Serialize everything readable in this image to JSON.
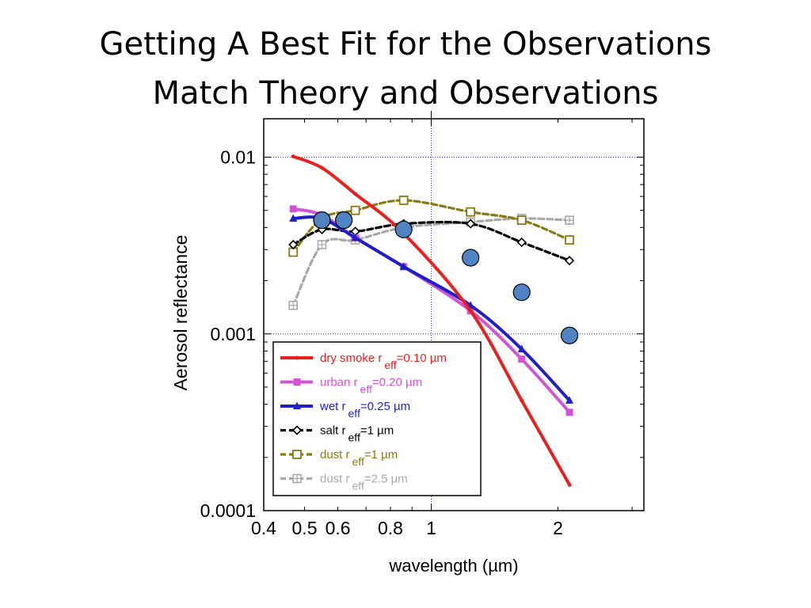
{
  "slide": {
    "title_line1": "Getting A Best Fit for the Observations",
    "title_line2": "Match Theory and Observations"
  },
  "chart_data": {
    "type": "line",
    "xlabel": "wavelength (µm)",
    "ylabel": "Aerosol reflectance",
    "x_scale": "log",
    "y_scale": "log",
    "xlim": [
      0.4,
      3.2
    ],
    "ylim": [
      0.0001,
      0.0165
    ],
    "x_ticks": [
      {
        "v": 0.4,
        "label": "0.4"
      },
      {
        "v": 0.5,
        "label": "0.5"
      },
      {
        "v": 0.6,
        "label": "0.6"
      },
      {
        "v": 0.8,
        "label": "0.8"
      },
      {
        "v": 1,
        "label": "1"
      },
      {
        "v": 2,
        "label": "2"
      }
    ],
    "y_ticks": [
      {
        "v": 0.01,
        "label": "0.01"
      },
      {
        "v": 0.001,
        "label": "0.001"
      },
      {
        "v": 0.0001,
        "label": "0.0001"
      }
    ],
    "reference_lines": {
      "x": [
        1.0
      ],
      "y": [
        0.01,
        0.001
      ]
    },
    "legend_position": "bottom-left",
    "series": [
      {
        "name_text": "dry smoke r",
        "name_sub": "eff",
        "name_tail": "=0.10 µm",
        "color": "#e8211f",
        "marker": "dot",
        "dash": "solid",
        "x": [
          0.47,
          0.55,
          0.66,
          0.86,
          1.24,
          1.64,
          2.13
        ],
        "y": [
          0.0101,
          0.0087,
          0.0062,
          0.0037,
          0.00135,
          0.00042,
          0.00014
        ]
      },
      {
        "name_text": "urban r",
        "name_sub": "eff",
        "name_tail": "=0.20 µm",
        "color": "#d453d4",
        "marker": "square",
        "dash": "solid",
        "x": [
          0.47,
          0.55,
          0.66,
          0.86,
          1.24,
          1.64,
          2.13
        ],
        "y": [
          0.0051,
          0.0047,
          0.0035,
          0.0024,
          0.00135,
          0.00072,
          0.00036
        ]
      },
      {
        "name_text": "wet  r",
        "name_sub": "eff",
        "name_tail": "=0.25 µm",
        "color": "#1f1fc8",
        "marker": "triangle",
        "dash": "solid",
        "x": [
          0.47,
          0.55,
          0.66,
          0.86,
          1.24,
          1.64,
          2.13
        ],
        "y": [
          0.0045,
          0.0045,
          0.0035,
          0.0024,
          0.00145,
          0.00082,
          0.00042
        ]
      },
      {
        "name_text": "salt r",
        "name_sub": "eff",
        "name_tail": "=1 µm",
        "color": "#000000",
        "marker": "diamond",
        "dash": "dashed",
        "x": [
          0.47,
          0.55,
          0.66,
          0.86,
          1.24,
          1.64,
          2.13
        ],
        "y": [
          0.0032,
          0.0039,
          0.0038,
          0.0042,
          0.0042,
          0.0033,
          0.0026
        ]
      },
      {
        "name_text": "dust r",
        "name_sub": "eff",
        "name_tail": "=1 µm",
        "color": "#8a7a12",
        "marker": "open-square",
        "dash": "dashed",
        "x": [
          0.47,
          0.55,
          0.66,
          0.86,
          1.24,
          1.64,
          2.13
        ],
        "y": [
          0.0029,
          0.0045,
          0.005,
          0.0057,
          0.0049,
          0.0044,
          0.0034
        ]
      },
      {
        "name_text": "dust r",
        "name_sub": "eff",
        "name_tail": "=2.5 µm",
        "color": "#a8a8a8",
        "marker": "crossed-square",
        "dash": "dashed",
        "x": [
          0.47,
          0.55,
          0.66,
          0.86,
          1.24,
          1.64,
          2.13
        ],
        "y": [
          0.00145,
          0.0032,
          0.0034,
          0.004,
          0.0043,
          0.0045,
          0.0044
        ]
      }
    ],
    "observations": {
      "color": "#4f83c4",
      "x": [
        0.55,
        0.62,
        0.86,
        1.24,
        1.64,
        2.13
      ],
      "y": [
        0.0044,
        0.0044,
        0.0039,
        0.0027,
        0.00172,
        0.00098
      ]
    }
  }
}
